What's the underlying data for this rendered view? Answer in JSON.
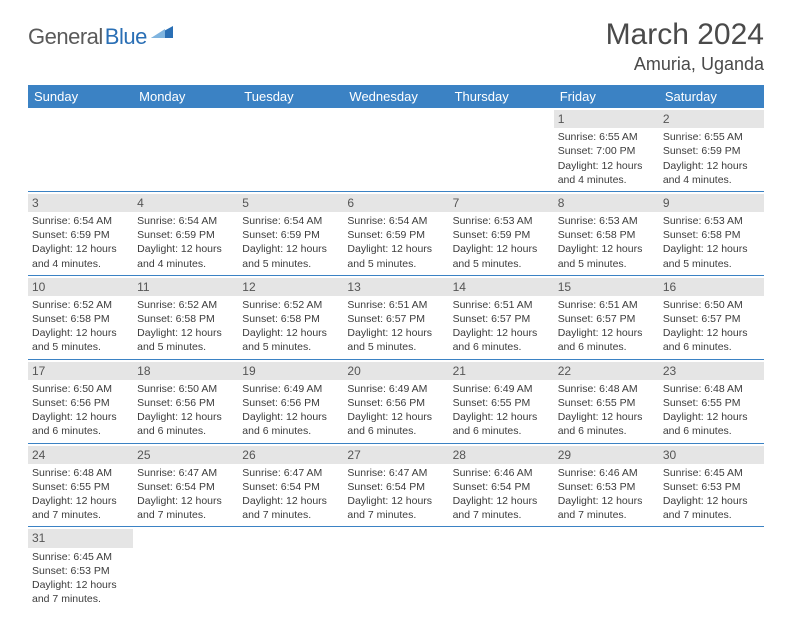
{
  "logo": {
    "part1": "General",
    "part2": "Blue"
  },
  "title": "March 2024",
  "location": "Amuria, Uganda",
  "colors": {
    "header_bg": "#3b82c4",
    "header_text": "#ffffff",
    "daynum_bg": "#e5e5e5",
    "daynum_text": "#555555",
    "body_text": "#3c3c3c",
    "row_divider": "#3b82c4",
    "logo_gray": "#5a5a5a",
    "logo_blue": "#2a6fb5"
  },
  "day_headers": [
    "Sunday",
    "Monday",
    "Tuesday",
    "Wednesday",
    "Thursday",
    "Friday",
    "Saturday"
  ],
  "weeks": [
    [
      {
        "empty": true
      },
      {
        "empty": true
      },
      {
        "empty": true
      },
      {
        "empty": true
      },
      {
        "empty": true
      },
      {
        "n": "1",
        "sunrise": "Sunrise: 6:55 AM",
        "sunset": "Sunset: 7:00 PM",
        "d1": "Daylight: 12 hours",
        "d2": "and 4 minutes."
      },
      {
        "n": "2",
        "sunrise": "Sunrise: 6:55 AM",
        "sunset": "Sunset: 6:59 PM",
        "d1": "Daylight: 12 hours",
        "d2": "and 4 minutes."
      }
    ],
    [
      {
        "n": "3",
        "sunrise": "Sunrise: 6:54 AM",
        "sunset": "Sunset: 6:59 PM",
        "d1": "Daylight: 12 hours",
        "d2": "and 4 minutes."
      },
      {
        "n": "4",
        "sunrise": "Sunrise: 6:54 AM",
        "sunset": "Sunset: 6:59 PM",
        "d1": "Daylight: 12 hours",
        "d2": "and 4 minutes."
      },
      {
        "n": "5",
        "sunrise": "Sunrise: 6:54 AM",
        "sunset": "Sunset: 6:59 PM",
        "d1": "Daylight: 12 hours",
        "d2": "and 5 minutes."
      },
      {
        "n": "6",
        "sunrise": "Sunrise: 6:54 AM",
        "sunset": "Sunset: 6:59 PM",
        "d1": "Daylight: 12 hours",
        "d2": "and 5 minutes."
      },
      {
        "n": "7",
        "sunrise": "Sunrise: 6:53 AM",
        "sunset": "Sunset: 6:59 PM",
        "d1": "Daylight: 12 hours",
        "d2": "and 5 minutes."
      },
      {
        "n": "8",
        "sunrise": "Sunrise: 6:53 AM",
        "sunset": "Sunset: 6:58 PM",
        "d1": "Daylight: 12 hours",
        "d2": "and 5 minutes."
      },
      {
        "n": "9",
        "sunrise": "Sunrise: 6:53 AM",
        "sunset": "Sunset: 6:58 PM",
        "d1": "Daylight: 12 hours",
        "d2": "and 5 minutes."
      }
    ],
    [
      {
        "n": "10",
        "sunrise": "Sunrise: 6:52 AM",
        "sunset": "Sunset: 6:58 PM",
        "d1": "Daylight: 12 hours",
        "d2": "and 5 minutes."
      },
      {
        "n": "11",
        "sunrise": "Sunrise: 6:52 AM",
        "sunset": "Sunset: 6:58 PM",
        "d1": "Daylight: 12 hours",
        "d2": "and 5 minutes."
      },
      {
        "n": "12",
        "sunrise": "Sunrise: 6:52 AM",
        "sunset": "Sunset: 6:58 PM",
        "d1": "Daylight: 12 hours",
        "d2": "and 5 minutes."
      },
      {
        "n": "13",
        "sunrise": "Sunrise: 6:51 AM",
        "sunset": "Sunset: 6:57 PM",
        "d1": "Daylight: 12 hours",
        "d2": "and 5 minutes."
      },
      {
        "n": "14",
        "sunrise": "Sunrise: 6:51 AM",
        "sunset": "Sunset: 6:57 PM",
        "d1": "Daylight: 12 hours",
        "d2": "and 6 minutes."
      },
      {
        "n": "15",
        "sunrise": "Sunrise: 6:51 AM",
        "sunset": "Sunset: 6:57 PM",
        "d1": "Daylight: 12 hours",
        "d2": "and 6 minutes."
      },
      {
        "n": "16",
        "sunrise": "Sunrise: 6:50 AM",
        "sunset": "Sunset: 6:57 PM",
        "d1": "Daylight: 12 hours",
        "d2": "and 6 minutes."
      }
    ],
    [
      {
        "n": "17",
        "sunrise": "Sunrise: 6:50 AM",
        "sunset": "Sunset: 6:56 PM",
        "d1": "Daylight: 12 hours",
        "d2": "and 6 minutes."
      },
      {
        "n": "18",
        "sunrise": "Sunrise: 6:50 AM",
        "sunset": "Sunset: 6:56 PM",
        "d1": "Daylight: 12 hours",
        "d2": "and 6 minutes."
      },
      {
        "n": "19",
        "sunrise": "Sunrise: 6:49 AM",
        "sunset": "Sunset: 6:56 PM",
        "d1": "Daylight: 12 hours",
        "d2": "and 6 minutes."
      },
      {
        "n": "20",
        "sunrise": "Sunrise: 6:49 AM",
        "sunset": "Sunset: 6:56 PM",
        "d1": "Daylight: 12 hours",
        "d2": "and 6 minutes."
      },
      {
        "n": "21",
        "sunrise": "Sunrise: 6:49 AM",
        "sunset": "Sunset: 6:55 PM",
        "d1": "Daylight: 12 hours",
        "d2": "and 6 minutes."
      },
      {
        "n": "22",
        "sunrise": "Sunrise: 6:48 AM",
        "sunset": "Sunset: 6:55 PM",
        "d1": "Daylight: 12 hours",
        "d2": "and 6 minutes."
      },
      {
        "n": "23",
        "sunrise": "Sunrise: 6:48 AM",
        "sunset": "Sunset: 6:55 PM",
        "d1": "Daylight: 12 hours",
        "d2": "and 6 minutes."
      }
    ],
    [
      {
        "n": "24",
        "sunrise": "Sunrise: 6:48 AM",
        "sunset": "Sunset: 6:55 PM",
        "d1": "Daylight: 12 hours",
        "d2": "and 7 minutes."
      },
      {
        "n": "25",
        "sunrise": "Sunrise: 6:47 AM",
        "sunset": "Sunset: 6:54 PM",
        "d1": "Daylight: 12 hours",
        "d2": "and 7 minutes."
      },
      {
        "n": "26",
        "sunrise": "Sunrise: 6:47 AM",
        "sunset": "Sunset: 6:54 PM",
        "d1": "Daylight: 12 hours",
        "d2": "and 7 minutes."
      },
      {
        "n": "27",
        "sunrise": "Sunrise: 6:47 AM",
        "sunset": "Sunset: 6:54 PM",
        "d1": "Daylight: 12 hours",
        "d2": "and 7 minutes."
      },
      {
        "n": "28",
        "sunrise": "Sunrise: 6:46 AM",
        "sunset": "Sunset: 6:54 PM",
        "d1": "Daylight: 12 hours",
        "d2": "and 7 minutes."
      },
      {
        "n": "29",
        "sunrise": "Sunrise: 6:46 AM",
        "sunset": "Sunset: 6:53 PM",
        "d1": "Daylight: 12 hours",
        "d2": "and 7 minutes."
      },
      {
        "n": "30",
        "sunrise": "Sunrise: 6:45 AM",
        "sunset": "Sunset: 6:53 PM",
        "d1": "Daylight: 12 hours",
        "d2": "and 7 minutes."
      }
    ],
    [
      {
        "n": "31",
        "sunrise": "Sunrise: 6:45 AM",
        "sunset": "Sunset: 6:53 PM",
        "d1": "Daylight: 12 hours",
        "d2": "and 7 minutes."
      },
      {
        "empty": true
      },
      {
        "empty": true
      },
      {
        "empty": true
      },
      {
        "empty": true
      },
      {
        "empty": true
      },
      {
        "empty": true
      }
    ]
  ]
}
